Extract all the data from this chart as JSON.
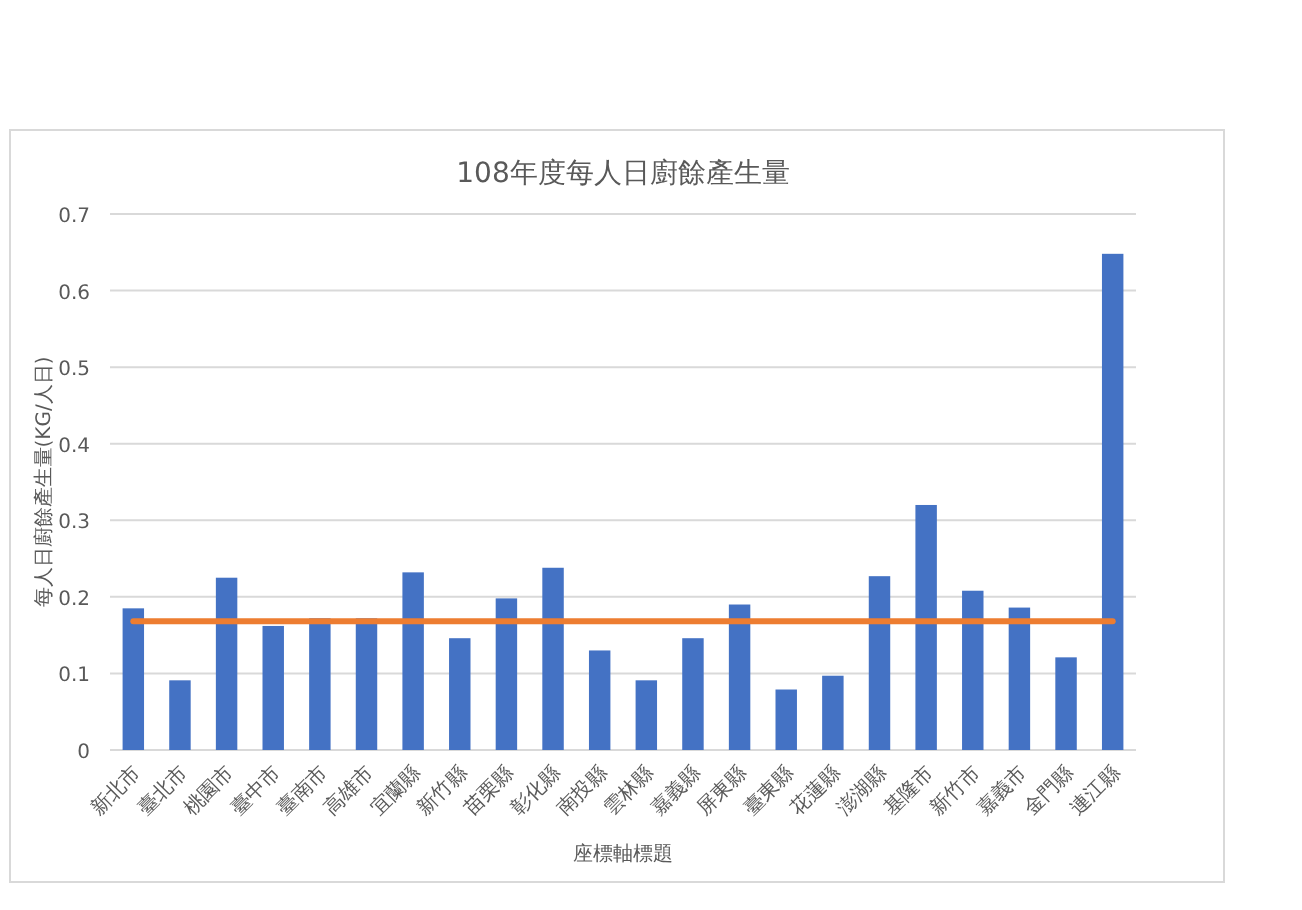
{
  "chart_data": {
    "type": "bar",
    "title": "108年度每人日廚餘產生量",
    "xlabel": "座標軸標題",
    "ylabel": "每人日廚餘產生量(KG/人日)",
    "categories": [
      "新北市",
      "臺北市",
      "桃園市",
      "臺中市",
      "臺南市",
      "高雄市",
      "宜蘭縣",
      "新竹縣",
      "苗栗縣",
      "彰化縣",
      "南投縣",
      "雲林縣",
      "嘉義縣",
      "屏東縣",
      "臺東縣",
      "花蓮縣",
      "澎湖縣",
      "基隆市",
      "新竹市",
      "嘉義市",
      "金門縣",
      "連江縣"
    ],
    "series": [
      {
        "color": "#4472c4",
        "values": [
          0.185,
          0.091,
          0.225,
          0.162,
          0.172,
          0.172,
          0.232,
          0.146,
          0.198,
          0.238,
          0.13,
          0.091,
          0.146,
          0.19,
          0.079,
          0.097,
          0.227,
          0.32,
          0.208,
          0.186,
          0.121,
          0.648
        ]
      },
      {
        "type": "line",
        "color": "#ed7d31",
        "values": [
          0.168,
          0.168,
          0.168,
          0.168,
          0.168,
          0.168,
          0.168,
          0.168,
          0.168,
          0.168,
          0.168,
          0.168,
          0.168,
          0.168,
          0.168,
          0.168,
          0.168,
          0.168,
          0.168,
          0.168,
          0.168,
          0.168
        ]
      }
    ],
    "ylim": [
      0,
      0.7
    ],
    "yticks": [
      0,
      0.1,
      0.2,
      0.3,
      0.4,
      0.5,
      0.6,
      0.7
    ],
    "grid": "y"
  }
}
